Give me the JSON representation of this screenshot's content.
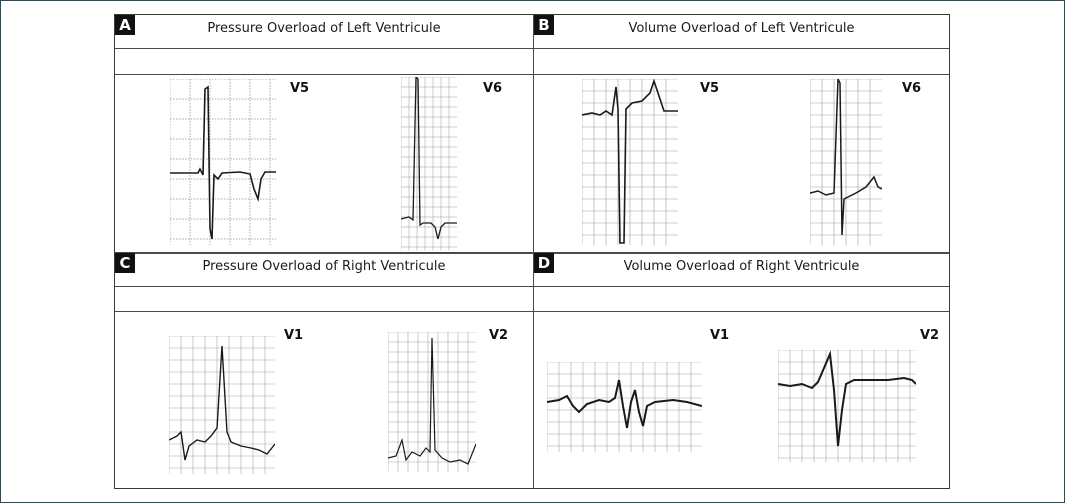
{
  "panels": [
    {
      "letter": "A",
      "title": "Pressure Overload of Left Ventricule",
      "leads": [
        "V5",
        "V6"
      ]
    },
    {
      "letter": "B",
      "title": "Volume Overload of Left Ventricule",
      "leads": [
        "V5",
        "V6"
      ]
    },
    {
      "letter": "C",
      "title": "Pressure Overload of Right Ventricule",
      "leads": [
        "V1",
        "V2"
      ]
    },
    {
      "letter": "D",
      "title": "Volume Overload of Right Ventricule",
      "leads": [
        "V1",
        "V2"
      ]
    }
  ],
  "colors": {
    "frame_border": "#2a4e5e",
    "ecg_trace": "#1a1a1a",
    "ecg_grid": "#9a9a9a",
    "letter_badge": "#111111"
  }
}
